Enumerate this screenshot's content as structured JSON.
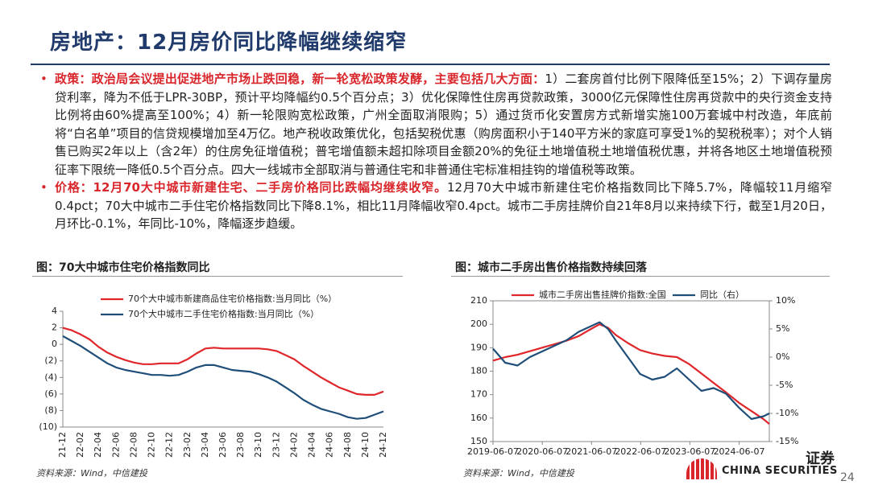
{
  "header": {
    "title": "房地产：12月房价同比降幅继续缩窄"
  },
  "bullets": [
    {
      "lead": "政策：政治局会议提出促进地产市场止跌回稳，新一轮宽松政策发酵，主要包括几大方面：",
      "body": "1）二套房首付比例下限降低至15%；2）下调存量房贷利率，降为不低于LPR-30BP，预计平均降幅约0.5个百分点；3）优化保障性住房再贷款政策，3000亿元保障性住房再贷款中的央行资金支持比例将由60%提高至100%；4）新一轮限购宽松政策，广州全面取消限购；5）通过货币化安置房方式新增实施100万套城中村改造，年底前将“白名单”项目的信贷规模增加至4万亿。地产税收政策优化，包括契税优惠（购房面积小于140平方米的家庭可享受1%的契税税率）；对个人销售已购买2年以上（含2年）的住房免征增值税；普宅增值额未超扣除项目金额20%的免征土地增值税土地增值税优惠，并将各地区土地增值税预征率下限统一降低0.5个百分点。四大一线城市全部取消与普通住宅和非普通住宅标准相挂钩的增值税等政策。"
    },
    {
      "lead": "价格：12月70大中城市新建住宅、二手房价格同比跌幅均继续收窄。",
      "body": "12月70大中城市新建住宅价格指数同比下降5.7%，降幅较11月缩窄0.4pct；70大中城市二手住宅价格指数同比下降8.1%，相比11月降幅收窄0.4pct。城市二手房挂牌价自21年8月以来持续下行，截至1月20日，月环比-0.1%，年同比-10%，降幅逐步趋缓。"
    }
  ],
  "chart_data": [
    {
      "type": "line",
      "title": "图：70大中城市住宅价格指数同比",
      "source": "资料来源：Wind，中信建投",
      "categories": [
        "21-12",
        null,
        "22-02",
        null,
        "22-04",
        null,
        "22-06",
        null,
        "22-08",
        null,
        "22-10",
        null,
        "22-12",
        null,
        "23-02",
        null,
        "23-04",
        null,
        "23-06",
        null,
        "23-08",
        null,
        "23-10",
        null,
        "23-12",
        null,
        "24-02",
        null,
        "24-04",
        null,
        "24-06",
        null,
        "24-08",
        null,
        "24-10",
        null,
        "24-12"
      ],
      "series": [
        {
          "name": "70个大中城市新建商品住宅价格指数:当月同比（%）",
          "color": "#e0262a",
          "values": [
            2.0,
            1.7,
            1.2,
            0.6,
            -0.3,
            -1.0,
            -1.5,
            -1.9,
            -2.2,
            -2.4,
            -2.4,
            -2.3,
            -2.3,
            -2.3,
            -1.8,
            -1.1,
            -0.5,
            -0.4,
            -0.5,
            -0.5,
            -0.5,
            -0.5,
            -0.5,
            -0.6,
            -0.8,
            -1.3,
            -1.8,
            -2.6,
            -3.3,
            -4.0,
            -4.6,
            -5.2,
            -5.6,
            -6.0,
            -6.1,
            -6.1,
            -5.7
          ]
        },
        {
          "name": "70个大中城市二手住宅价格指数:当月同比（%）",
          "color": "#1f4e79",
          "values": [
            1.0,
            0.4,
            -0.2,
            -0.9,
            -1.6,
            -2.3,
            -2.8,
            -3.1,
            -3.3,
            -3.5,
            -3.7,
            -3.7,
            -3.8,
            -3.7,
            -3.3,
            -2.8,
            -2.5,
            -2.5,
            -2.8,
            -3.1,
            -3.2,
            -3.3,
            -3.6,
            -4.0,
            -4.5,
            -5.2,
            -5.9,
            -6.7,
            -7.3,
            -7.8,
            -8.1,
            -8.4,
            -8.8,
            -9.0,
            -8.9,
            -8.5,
            -8.1
          ]
        }
      ],
      "ylim": [
        -10,
        4
      ],
      "yticks": [
        4,
        2,
        0,
        {
          "value": -2,
          "label": "(2)"
        },
        {
          "value": -4,
          "label": "(4)"
        },
        {
          "value": -6,
          "label": "(6)"
        },
        {
          "value": -8,
          "label": "(8)"
        },
        {
          "value": -10,
          "label": "(10)"
        }
      ],
      "grid": false
    },
    {
      "type": "line",
      "title": "图：城市二手房出售价格指数持续回落",
      "source": "资料来源：Wind，中信建投",
      "x": [
        "2019-06-07",
        "2019-09-06",
        "2019-12-06",
        "2020-03-06",
        "2020-06-05",
        "2020-09-04",
        "2020-12-04",
        "2021-03-05",
        "2021-06-04",
        "2021-08-06",
        "2021-10-08",
        "2021-12-03",
        "2022-03-04",
        "2022-06-03",
        "2022-09-02",
        "2022-12-02",
        "2023-03-03",
        "2023-06-02",
        "2023-09-01",
        "2023-12-01",
        "2024-03-01",
        "2024-06-07",
        "2024-09-06",
        "2024-12-06",
        "2025-01-17"
      ],
      "series": [
        {
          "name": "城市二手房出售挂牌价指数:全国",
          "color": "#e0262a",
          "values": [
            184.5,
            186,
            187,
            188.5,
            190,
            191.5,
            193,
            195,
            198,
            200,
            198.5,
            195.5,
            192,
            189,
            187.5,
            186.5,
            186,
            183,
            179,
            175,
            171,
            166.5,
            163,
            159.5,
            157.5
          ]
        },
        {
          "name": "同比（右）",
          "color": "#1f4e79",
          "axis": "y2",
          "values": [
            1.5,
            -1.0,
            -1.5,
            0.0,
            1.0,
            2.0,
            3.0,
            4.5,
            5.5,
            6.2,
            5.0,
            3.0,
            0.0,
            -3.0,
            -4.0,
            -3.5,
            -2.0,
            -4.0,
            -6.0,
            -5.5,
            -6.5,
            -9.0,
            -11.0,
            -10.5,
            -10.0
          ]
        }
      ],
      "xlim": [
        "2019-06-07",
        "2025-01-17"
      ],
      "xticks": [
        "2019-06-07",
        "2020-06-07",
        "2021-06-07",
        "2022-06-07",
        "2023-06-07",
        "2024-06-07"
      ],
      "ylim": [
        150,
        210
      ],
      "yticks": [
        150,
        160,
        170,
        180,
        190,
        200,
        210
      ],
      "y2lim": [
        -15,
        10
      ],
      "y2ticks": [
        {
          "value": 10,
          "label": "10%"
        },
        {
          "value": 5,
          "label": "5%"
        },
        {
          "value": 0,
          "label": "0%"
        },
        {
          "value": -5,
          "label": "-5%"
        },
        {
          "value": -10,
          "label": "-10%"
        },
        {
          "value": -15,
          "label": "-15%"
        }
      ],
      "grid": false
    }
  ],
  "footer": {
    "logo_cn": "证券",
    "logo_en": "CHINA SECURITIES",
    "page": "24"
  }
}
